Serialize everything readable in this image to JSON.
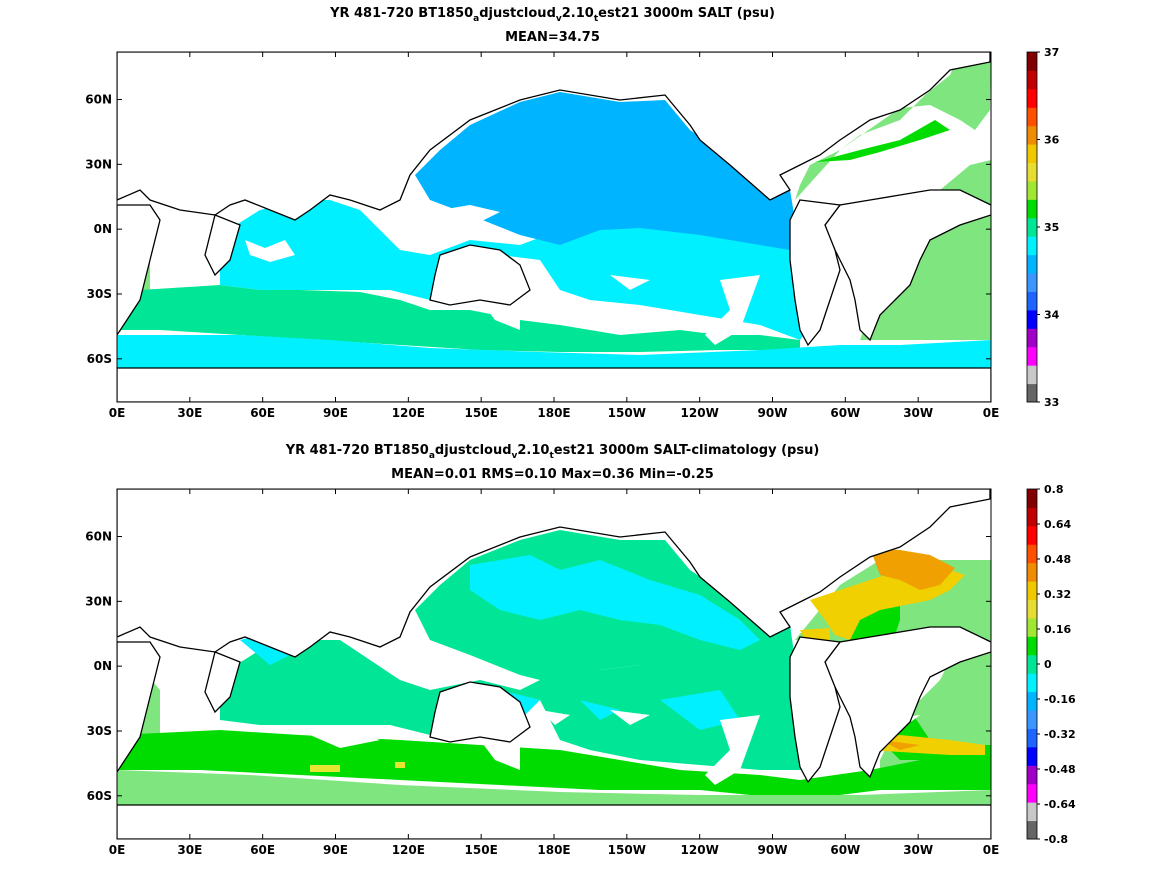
{
  "panels": [
    {
      "title": {
        "pre": "YR 481-720 BT1850",
        "sub1": "a",
        "mid": "djustcloud",
        "sub2": "v",
        "mid2": "2.10",
        "sub3": "t",
        "post": "est21 3000m SALT (psu)"
      },
      "stats": "MEAN=34.75"
    },
    {
      "title": {
        "pre": "YR 481-720 BT1850",
        "sub1": "a",
        "mid": "djustcloud",
        "sub2": "v",
        "mid2": "2.10",
        "sub3": "t",
        "post": "est21 3000m SALT-climatology (psu)"
      },
      "stats": "MEAN=0.01   RMS=0.10   Max=0.36   Min=-0.25"
    }
  ],
  "chart_data": [
    {
      "type": "heatmap",
      "field": "3000m SALT (psu)",
      "x_ticks": [
        "0E",
        "30E",
        "60E",
        "90E",
        "120E",
        "150E",
        "180E",
        "150W",
        "120W",
        "90W",
        "60W",
        "30W",
        "0E"
      ],
      "y_ticks": [
        "60N",
        "30N",
        "0N",
        "30S",
        "60S"
      ],
      "y_tick_values": [
        60,
        30,
        0,
        -30,
        -60
      ],
      "xlim": [
        0,
        360
      ],
      "ylim": [
        -80,
        82
      ],
      "colorbar": {
        "min": 33,
        "max": 37,
        "labels": [
          "37",
          "36",
          "35",
          "34",
          "33"
        ],
        "label_values": [
          37,
          36,
          35,
          34,
          33
        ],
        "colors": [
          "#656565",
          "#c8c8c8",
          "#ff00ff",
          "#a000c8",
          "#0000ff",
          "#1e64ff",
          "#3c96ff",
          "#00b4ff",
          "#00f0ff",
          "#00e696",
          "#00dc00",
          "#a0e632",
          "#e6dc32",
          "#f0c800",
          "#f08c00",
          "#ff5000",
          "#ff0000",
          "#be0000",
          "#820000"
        ]
      },
      "regions": [
        {
          "level": 35.25,
          "color": "#7fe57f",
          "desc": "Atlantic"
        },
        {
          "level": 34.6,
          "color": "#00b4ff",
          "desc": "North/tropical Pacific"
        },
        {
          "level": 34.75,
          "color": "#00f0ff",
          "desc": "Indian/South Pacific/Southern Ocean"
        },
        {
          "level": 34.9,
          "color": "#00e696",
          "desc": "Southern subtropical band"
        },
        {
          "level": 35.1,
          "color": "#00dc00",
          "desc": "North Atlantic"
        }
      ]
    },
    {
      "type": "heatmap",
      "field": "3000m SALT-climatology (psu)",
      "x_ticks": [
        "0E",
        "30E",
        "60E",
        "90E",
        "120E",
        "150E",
        "180E",
        "150W",
        "120W",
        "90W",
        "60W",
        "30W",
        "0E"
      ],
      "y_ticks": [
        "60N",
        "30N",
        "0N",
        "30S",
        "60S"
      ],
      "y_tick_values": [
        60,
        30,
        0,
        -30,
        -60
      ],
      "xlim": [
        0,
        360
      ],
      "ylim": [
        -80,
        82
      ],
      "colorbar": {
        "min": -0.8,
        "max": 0.8,
        "labels": [
          "0.8",
          "0.64",
          "0.48",
          "0.32",
          "0.16",
          "0",
          "-0.16",
          "-0.32",
          "-0.48",
          "-0.64",
          "-0.8"
        ],
        "label_values": [
          0.8,
          0.64,
          0.48,
          0.32,
          0.16,
          0,
          -0.16,
          -0.32,
          -0.48,
          -0.64,
          -0.8
        ],
        "colors": [
          "#656565",
          "#c8c8c8",
          "#ff00ff",
          "#a000c8",
          "#0000ff",
          "#1e64ff",
          "#3c96ff",
          "#00b4ff",
          "#00f0ff",
          "#00e696",
          "#00dc00",
          "#a0e632",
          "#e6dc32",
          "#f0c800",
          "#f08c00",
          "#ff5000",
          "#ff0000",
          "#be0000",
          "#820000"
        ]
      },
      "regions": [
        {
          "level": 0.05,
          "color": "#7fe57f",
          "desc": "Atlantic/Southern"
        },
        {
          "level": -0.05,
          "color": "#00e696",
          "desc": "Pacific/Indian"
        },
        {
          "level": -0.15,
          "color": "#00f0ff",
          "desc": "North Pacific"
        },
        {
          "level": 0.12,
          "color": "#00dc00",
          "desc": "Southern Ocean band / Atlantic"
        },
        {
          "level": 0.3,
          "color": "#f0d000",
          "desc": "North Atlantic"
        },
        {
          "level": 0.4,
          "color": "#f0a000",
          "desc": "North Atlantic max"
        }
      ]
    }
  ]
}
